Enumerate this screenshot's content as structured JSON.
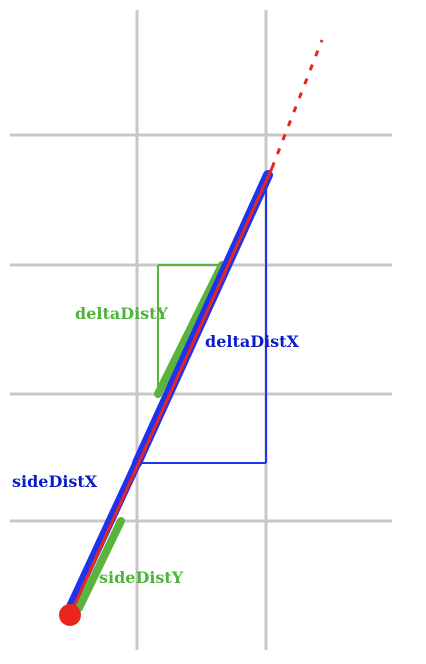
{
  "labels": {
    "delta_dist_y": "deltaDistY",
    "delta_dist_x": "deltaDistX",
    "side_dist_x": "sideDistX",
    "side_dist_y": "sideDistY"
  },
  "colors": {
    "grid": "#c8c8c8",
    "ray": "#e8261e",
    "x_segment": "#1e32f0",
    "y_segment": "#5ab43c",
    "x_label": "#0a1ec8",
    "y_label": "#50b43c"
  }
}
